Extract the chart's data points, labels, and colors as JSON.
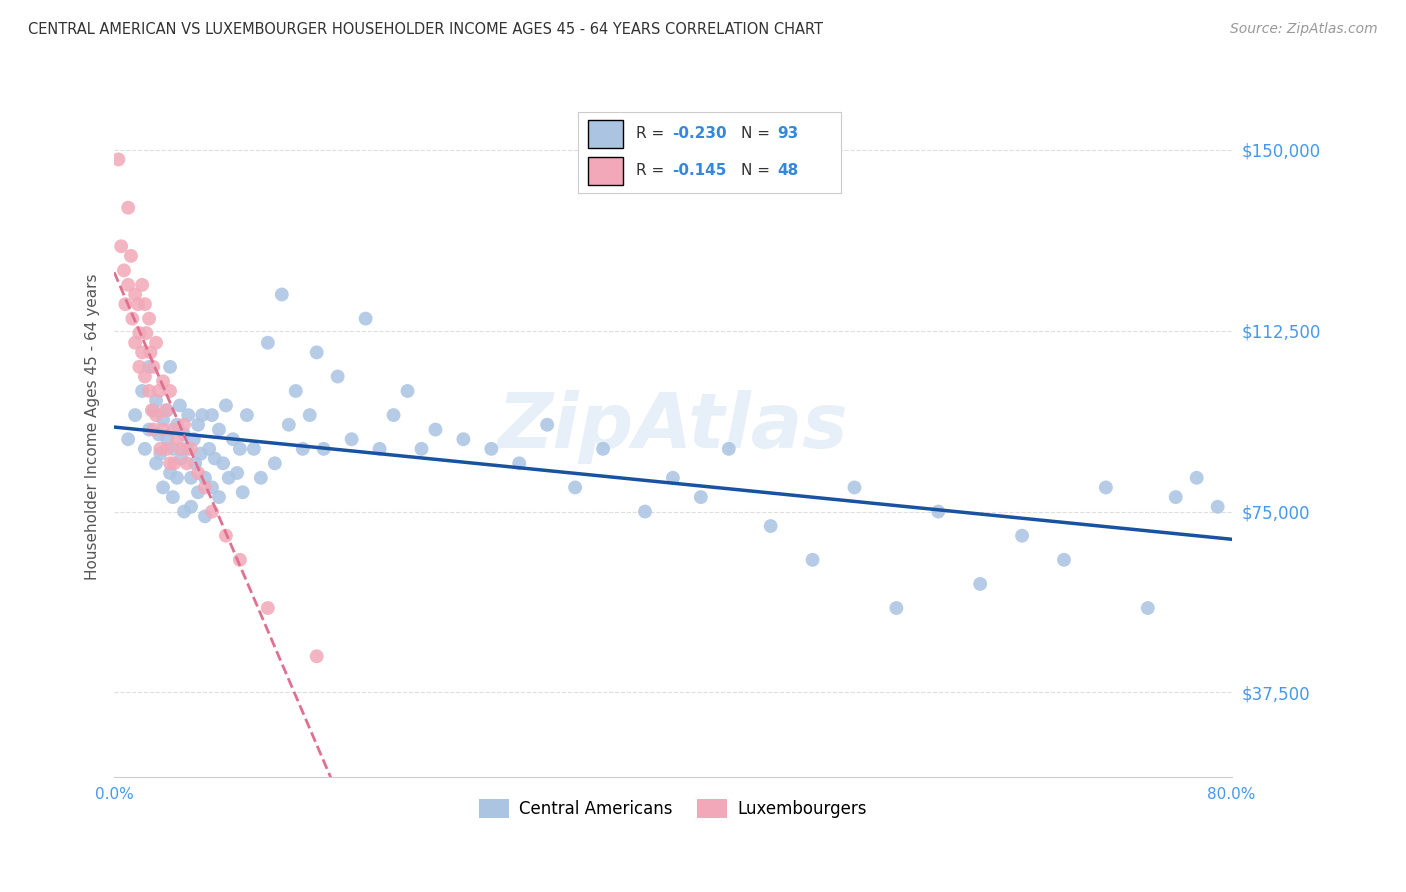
{
  "title": "CENTRAL AMERICAN VS LUXEMBOURGER HOUSEHOLDER INCOME AGES 45 - 64 YEARS CORRELATION CHART",
  "source": "Source: ZipAtlas.com",
  "ylabel": "Householder Income Ages 45 - 64 years",
  "xlim": [
    0.0,
    0.8
  ],
  "ylim": [
    20000,
    165000
  ],
  "yticks": [
    37500,
    75000,
    112500,
    150000
  ],
  "ytick_labels": [
    "$37,500",
    "$75,000",
    "$112,500",
    "$150,000"
  ],
  "xticks": [
    0.0,
    0.1,
    0.2,
    0.3,
    0.4,
    0.5,
    0.6,
    0.7,
    0.8
  ],
  "xtick_labels": [
    "0.0%",
    "",
    "",
    "",
    "",
    "",
    "",
    "",
    "80.0%"
  ],
  "blue_R": -0.23,
  "blue_N": 93,
  "pink_R": -0.145,
  "pink_N": 48,
  "blue_color": "#aac4e2",
  "pink_color": "#f2a8b8",
  "blue_line_color": "#1852a0",
  "pink_line_color": "#e07090",
  "background_color": "#ffffff",
  "grid_color": "#d0d0d0",
  "legend_labels": [
    "Central Americans",
    "Luxembourgers"
  ],
  "blue_scatter_x": [
    0.01,
    0.015,
    0.02,
    0.022,
    0.025,
    0.025,
    0.028,
    0.03,
    0.03,
    0.032,
    0.033,
    0.035,
    0.035,
    0.038,
    0.038,
    0.04,
    0.04,
    0.042,
    0.042,
    0.045,
    0.045,
    0.047,
    0.048,
    0.05,
    0.05,
    0.052,
    0.053,
    0.055,
    0.055,
    0.057,
    0.058,
    0.06,
    0.06,
    0.062,
    0.063,
    0.065,
    0.065,
    0.068,
    0.07,
    0.07,
    0.072,
    0.075,
    0.075,
    0.078,
    0.08,
    0.082,
    0.085,
    0.088,
    0.09,
    0.092,
    0.095,
    0.1,
    0.105,
    0.11,
    0.115,
    0.12,
    0.125,
    0.13,
    0.135,
    0.14,
    0.145,
    0.15,
    0.16,
    0.17,
    0.18,
    0.19,
    0.2,
    0.21,
    0.22,
    0.23,
    0.25,
    0.27,
    0.29,
    0.31,
    0.33,
    0.35,
    0.38,
    0.4,
    0.42,
    0.44,
    0.47,
    0.5,
    0.53,
    0.56,
    0.59,
    0.62,
    0.65,
    0.68,
    0.71,
    0.74,
    0.76,
    0.775,
    0.79
  ],
  "blue_scatter_y": [
    90000,
    95000,
    100000,
    88000,
    105000,
    92000,
    96000,
    85000,
    98000,
    91000,
    87000,
    94000,
    80000,
    90000,
    96000,
    83000,
    105000,
    88000,
    78000,
    93000,
    82000,
    97000,
    86000,
    91000,
    75000,
    88000,
    95000,
    82000,
    76000,
    90000,
    85000,
    93000,
    79000,
    87000,
    95000,
    82000,
    74000,
    88000,
    95000,
    80000,
    86000,
    92000,
    78000,
    85000,
    97000,
    82000,
    90000,
    83000,
    88000,
    79000,
    95000,
    88000,
    82000,
    110000,
    85000,
    120000,
    93000,
    100000,
    88000,
    95000,
    108000,
    88000,
    103000,
    90000,
    115000,
    88000,
    95000,
    100000,
    88000,
    92000,
    90000,
    88000,
    85000,
    93000,
    80000,
    88000,
    75000,
    82000,
    78000,
    88000,
    72000,
    65000,
    80000,
    55000,
    75000,
    60000,
    70000,
    65000,
    80000,
    55000,
    78000,
    82000,
    76000
  ],
  "pink_scatter_x": [
    0.003,
    0.005,
    0.007,
    0.008,
    0.01,
    0.01,
    0.012,
    0.013,
    0.015,
    0.015,
    0.017,
    0.018,
    0.018,
    0.02,
    0.02,
    0.022,
    0.022,
    0.023,
    0.025,
    0.025,
    0.026,
    0.027,
    0.028,
    0.028,
    0.03,
    0.03,
    0.032,
    0.033,
    0.035,
    0.035,
    0.037,
    0.038,
    0.04,
    0.04,
    0.042,
    0.043,
    0.045,
    0.048,
    0.05,
    0.052,
    0.055,
    0.06,
    0.065,
    0.07,
    0.08,
    0.09,
    0.11,
    0.145
  ],
  "pink_scatter_y": [
    148000,
    130000,
    125000,
    118000,
    138000,
    122000,
    128000,
    115000,
    120000,
    110000,
    118000,
    112000,
    105000,
    122000,
    108000,
    118000,
    103000,
    112000,
    115000,
    100000,
    108000,
    96000,
    105000,
    92000,
    110000,
    95000,
    100000,
    88000,
    102000,
    92000,
    96000,
    88000,
    100000,
    85000,
    92000,
    85000,
    90000,
    88000,
    93000,
    85000,
    88000,
    83000,
    80000,
    75000,
    70000,
    65000,
    55000,
    45000
  ]
}
